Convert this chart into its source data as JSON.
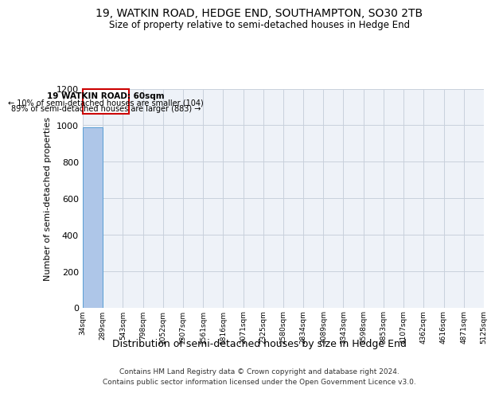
{
  "title": "19, WATKIN ROAD, HEDGE END, SOUTHAMPTON, SO30 2TB",
  "subtitle": "Size of property relative to semi-detached houses in Hedge End",
  "xlabel": "Distribution of semi-detached houses by size in Hedge End",
  "ylabel": "Number of semi-detached properties",
  "footer1": "Contains HM Land Registry data © Crown copyright and database right 2024.",
  "footer2": "Contains public sector information licensed under the Open Government Licence v3.0.",
  "bin_edges": [
    34,
    289,
    543,
    798,
    1052,
    1307,
    1561,
    1816,
    2071,
    2325,
    2580,
    2834,
    3089,
    3343,
    3598,
    3853,
    4107,
    4362,
    4616,
    4871,
    5125
  ],
  "bar_heights": [
    987,
    0,
    0,
    0,
    0,
    0,
    0,
    0,
    0,
    0,
    0,
    0,
    0,
    0,
    0,
    0,
    0,
    0,
    0,
    0
  ],
  "bar_color": "#aec6e8",
  "bar_edge_color": "#5a9fd4",
  "ylim": [
    0,
    1200
  ],
  "yticks": [
    0,
    200,
    400,
    600,
    800,
    1000,
    1200
  ],
  "property_size": 60,
  "annotation_title": "19 WATKIN ROAD: 60sqm",
  "annotation_line2": "← 10% of semi-detached houses are smaller (104)",
  "annotation_line3": "89% of semi-detached houses are larger (883) →",
  "annotation_box_color": "#ffffff",
  "annotation_border_color": "#cc0000",
  "background_color": "#eef2f8",
  "grid_color": "#c8d0dc"
}
